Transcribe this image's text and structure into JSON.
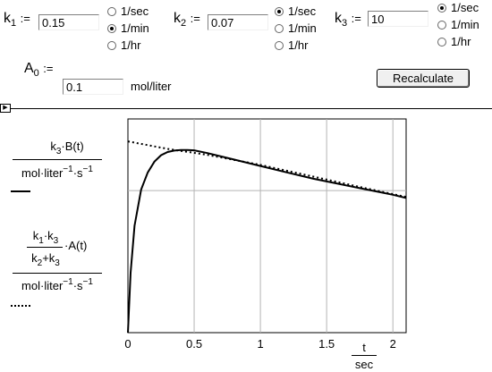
{
  "params": {
    "k1": {
      "label_main": "k",
      "label_sub": "1",
      "assign": ":=",
      "value": "0.15",
      "units": [
        "1/sec",
        "1/min",
        "1/hr"
      ],
      "selected": 1
    },
    "k2": {
      "label_main": "k",
      "label_sub": "2",
      "assign": ":=",
      "value": "0.07",
      "units": [
        "1/sec",
        "1/min",
        "1/hr"
      ],
      "selected": 0
    },
    "k3": {
      "label_main": "k",
      "label_sub": "3",
      "assign": ":=",
      "value": "10",
      "units": [
        "1/sec",
        "1/min",
        "1/hr"
      ],
      "selected": 0
    },
    "A0": {
      "label_main": "A",
      "label_sub": "0",
      "assign": ":=",
      "value": "0.1",
      "unit": "mol/liter"
    }
  },
  "recalculate_label": "Recalculate",
  "region_marker": "▶",
  "legend": {
    "expr1": {
      "k": "k",
      "k_sub": "3",
      "rest": "·B(t)"
    },
    "expr2": {
      "k1": "k",
      "k1_sub": "1",
      "dot": "·",
      "k3": "k",
      "k3_sub": "3",
      "den_k2": "k",
      "den_k2_sub": "2",
      "plus": "+",
      "den_k3": "k",
      "den_k3_sub": "3",
      "rest": "·A(t)"
    },
    "den": {
      "a": "mol·liter",
      "e1": "−1",
      "b": "·s",
      "e2": "−1"
    }
  },
  "xaxis": {
    "num": "t",
    "den": "sec"
  },
  "chart_data": {
    "type": "line",
    "x_ticks": [
      "0",
      "0.5",
      "1",
      "1.5",
      "2"
    ],
    "xlim": [
      0,
      2.1
    ],
    "ylim": [
      0,
      1.0
    ],
    "series": [
      {
        "style": "solid",
        "color": "#000000",
        "x": [
          0,
          0.02,
          0.05,
          0.1,
          0.15,
          0.2,
          0.25,
          0.3,
          0.35,
          0.4,
          0.45,
          0.5,
          0.6,
          0.8,
          1.0,
          1.2,
          1.4,
          1.6,
          1.8,
          2.0,
          2.1
        ],
        "y": [
          0,
          0.28,
          0.5,
          0.67,
          0.75,
          0.8,
          0.83,
          0.845,
          0.852,
          0.855,
          0.855,
          0.853,
          0.84,
          0.81,
          0.78,
          0.75,
          0.72,
          0.695,
          0.67,
          0.645,
          0.63
        ]
      },
      {
        "style": "dotted",
        "color": "#000000",
        "x": [
          0,
          0.3,
          0.6,
          1.0,
          1.4,
          1.8,
          2.1
        ],
        "y": [
          0.895,
          0.86,
          0.832,
          0.785,
          0.73,
          0.675,
          0.635
        ]
      }
    ],
    "grid": true
  }
}
